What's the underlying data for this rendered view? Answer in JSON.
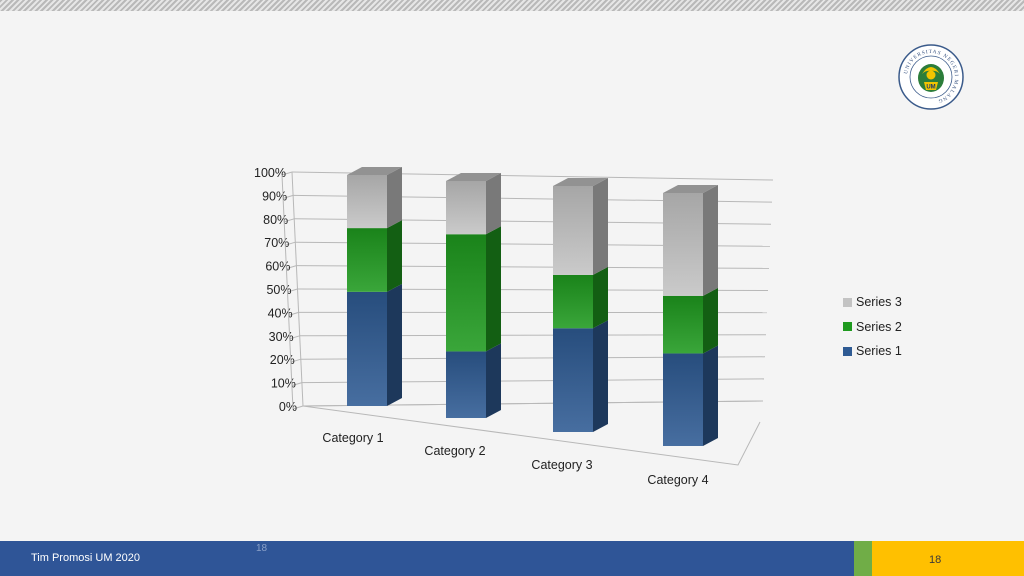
{
  "chart_data": {
    "type": "bar",
    "stacked": "percent",
    "categories": [
      "Category 1",
      "Category 2",
      "Category 3",
      "Category 4"
    ],
    "series": [
      {
        "name": "Series 1",
        "values": [
          4.3,
          2.5,
          3.5,
          4.5
        ],
        "color": "#2e5a93"
      },
      {
        "name": "Series 2",
        "values": [
          2.4,
          4.4,
          1.8,
          2.8
        ],
        "color": "#1f9a1f"
      },
      {
        "name": "Series 3",
        "values": [
          2,
          2,
          3,
          5
        ],
        "color": "#c3c3c3"
      }
    ],
    "y_ticks": [
      "0%",
      "10%",
      "20%",
      "30%",
      "40%",
      "50%",
      "60%",
      "70%",
      "80%",
      "90%",
      "100%"
    ],
    "ylim": [
      0,
      100
    ],
    "grid": true,
    "legend_position": "right",
    "style": "3d-column"
  },
  "legend": {
    "items": [
      {
        "label": "Series 3",
        "color": "#c3c3c3"
      },
      {
        "label": "Series 2",
        "color": "#1f9a1f"
      },
      {
        "label": "Series 1",
        "color": "#2e5a93"
      }
    ]
  },
  "footer": {
    "text": "Tim Promosi UM 2020",
    "page": "18",
    "ghost_page": "18"
  },
  "logo": {
    "name": "university-logo",
    "ring_text": "UNIVERSITAS NEGERI MALANG",
    "center_text": "UM"
  }
}
